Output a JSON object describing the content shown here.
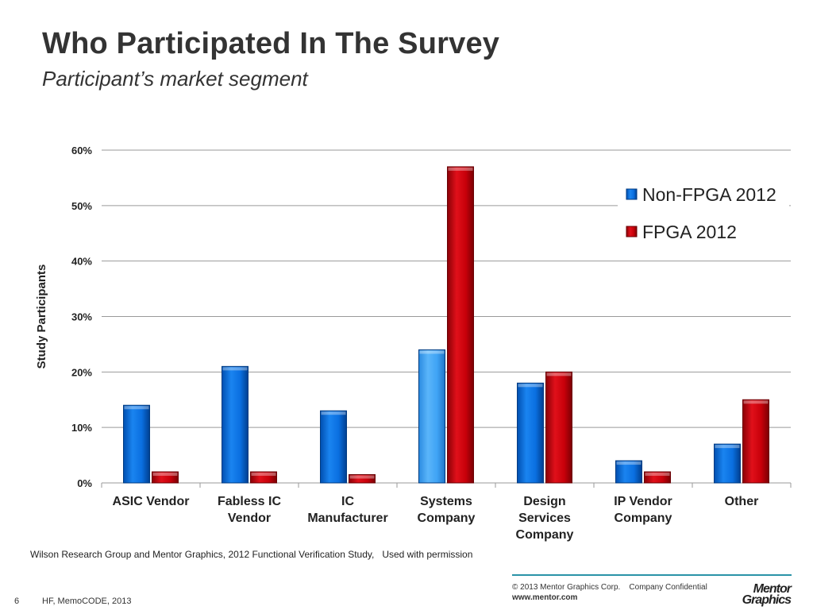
{
  "slide": {
    "title": "Who Participated In The Survey",
    "subtitle": "Participant’s market segment",
    "source": "Wilson Research Group and Mentor Graphics, 2012 Functional Verification Study,   Used with permission",
    "copyright": "© 2013 Mentor Graphics Corp.    Company Confidential",
    "url": "www.mentor.com",
    "logo_lines": [
      "Mentor",
      "Graphics"
    ],
    "page_number": "6",
    "footer_note": "HF, MemoCODE, 2013"
  },
  "colors": {
    "non_fpga": "#0a6fe0",
    "non_fpga_highlight": "#3fa3f5",
    "fpga": "#c8000a",
    "grid": "#9a9a9a",
    "text": "#333333",
    "footer_rule": "#2a93a8"
  },
  "chart_data": {
    "type": "bar",
    "title": "",
    "xlabel": "",
    "ylabel": "Study Participants",
    "ylim": [
      0,
      60
    ],
    "yticks": [
      "0%",
      "10%",
      "20%",
      "30%",
      "40%",
      "50%",
      "60%"
    ],
    "grid": true,
    "legend_position": "top-right",
    "categories": [
      [
        "ASIC Vendor"
      ],
      [
        "Fabless IC",
        "Vendor"
      ],
      [
        "IC",
        "Manufacturer"
      ],
      [
        "Systems",
        "Company"
      ],
      [
        "Design",
        "Services",
        "Company"
      ],
      [
        "IP Vendor",
        "Company"
      ],
      [
        "Other"
      ]
    ],
    "series": [
      {
        "name": "Non-FPGA 2012",
        "values": [
          14,
          21,
          13,
          24,
          18,
          4,
          7
        ]
      },
      {
        "name": "FPGA 2012",
        "values": [
          2,
          2,
          1.5,
          57,
          20,
          2,
          15
        ]
      }
    ]
  }
}
